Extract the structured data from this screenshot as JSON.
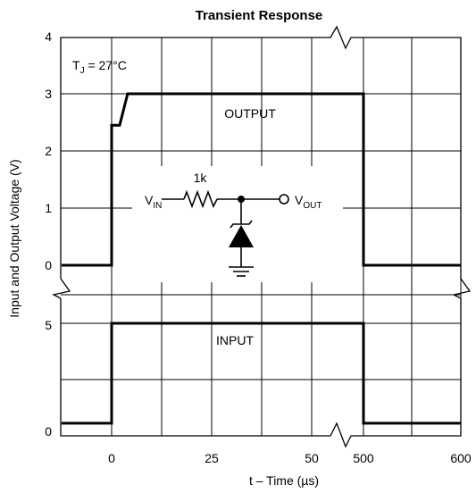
{
  "chart_data": {
    "type": "line",
    "title": "Transient Response",
    "xlabel": "t – Time (µs)",
    "ylabel": "Input and Output Voltage (V)",
    "upper_panel": {
      "yticks": [
        "0",
        "1",
        "2",
        "3",
        "4"
      ],
      "ylim": [
        0,
        4
      ]
    },
    "lower_panel": {
      "yticks": [
        "0",
        "5"
      ],
      "ylim": [
        0,
        5
      ]
    },
    "xticks": [
      "0",
      "25",
      "50",
      "500",
      "600"
    ],
    "x_scale_note": "broken axis: 0–50 µs, then 500–600 µs",
    "series": [
      {
        "name": "OUTPUT",
        "points": [
          [
            -12,
            0
          ],
          [
            0,
            0
          ],
          [
            0,
            2.45
          ],
          [
            2,
            2.45
          ],
          [
            4,
            3.0
          ],
          [
            500,
            3.0
          ],
          [
            500,
            0
          ],
          [
            600,
            0
          ]
        ]
      },
      {
        "name": "INPUT",
        "points": [
          [
            -12,
            0.3
          ],
          [
            0,
            0.3
          ],
          [
            0,
            5
          ],
          [
            500,
            5
          ],
          [
            500,
            0.3
          ],
          [
            600,
            0.3
          ]
        ]
      }
    ],
    "annotations": {
      "temperature": "T",
      "temperature_sub": "J",
      "temperature_value": " = 27°C",
      "output_label": "OUTPUT",
      "input_label": "INPUT",
      "resistor": "1k",
      "vin": "V",
      "vin_sub": "IN",
      "vout": "V",
      "vout_sub": "OUT"
    },
    "grid": true
  }
}
